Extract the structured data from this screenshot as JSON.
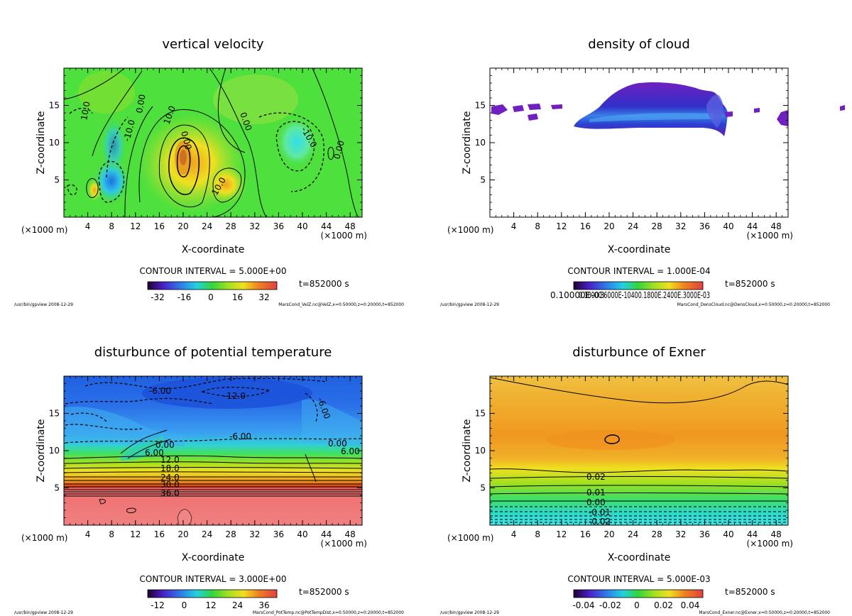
{
  "chart_data": [
    {
      "type": "heatmap",
      "title": "vertical velocity",
      "xlabel": "X-coordinate",
      "ylabel": "Z-coordinate",
      "x_unit_left": "(×1000 m)",
      "x_unit_right": "(×1000 m)",
      "xlim": [
        0,
        50
      ],
      "ylim": [
        0,
        20
      ],
      "xticks": [
        4,
        8,
        12,
        16,
        20,
        24,
        28,
        32,
        36,
        40,
        44,
        48
      ],
      "yticks": [
        5,
        10,
        15
      ],
      "contour_interval": "CONTOUR INTERVAL = 5.000E+00",
      "time_label": "t=852000 s",
      "colorbar_ticks": [
        "-32",
        "-16",
        "0",
        "16",
        "32"
      ],
      "contour_labels": [
        "0.00",
        "10.0",
        "10.0",
        "0.00",
        "-10.0",
        "0.00",
        "10.0",
        "-10.0",
        "0.00"
      ],
      "footer_left": "/usr/bin/gpview  2008-12-29",
      "footer_right": "MarsCond_VelZ.nc@VelZ,x=0:50000,z=0:20000,t=852000"
    },
    {
      "type": "heatmap",
      "title": "density of cloud",
      "xlabel": "X-coordinate",
      "ylabel": "Z-coordinate",
      "x_unit_left": "(×1000 m)",
      "x_unit_right": "(×1000 m)",
      "xlim": [
        0,
        50
      ],
      "ylim": [
        0,
        20
      ],
      "xticks": [
        4,
        8,
        12,
        16,
        20,
        24,
        28,
        32,
        36,
        40,
        44,
        48
      ],
      "yticks": [
        5,
        10,
        15
      ],
      "contour_interval": "CONTOUR INTERVAL = 1.000E-04",
      "time_label": "t=852000 s",
      "colorbar_ticks": [
        "0.10000E-03"
      ],
      "colorbar_overlap_text": "0.10000.6000E-10400.1800E.2400E.3000E-03",
      "footer_left": "/usr/bin/gpview  2008-12-29",
      "footer_right": "MarsCond_DensCloud.nc@DensCloud,x=0:50000,z=0:20000,t=852000"
    },
    {
      "type": "heatmap",
      "title": "disturbunce of potential temperature",
      "xlabel": "X-coordinate",
      "ylabel": "Z-coordinate",
      "x_unit_left": "(×1000 m)",
      "x_unit_right": "(×1000 m)",
      "xlim": [
        0,
        50
      ],
      "ylim": [
        0,
        20
      ],
      "xticks": [
        4,
        8,
        12,
        16,
        20,
        24,
        28,
        32,
        36,
        40,
        44,
        48
      ],
      "yticks": [
        5,
        10,
        15
      ],
      "contour_interval": "CONTOUR INTERVAL = 3.000E+00",
      "time_label": "t=852000 s",
      "colorbar_ticks": [
        "-12",
        "0",
        "12",
        "24",
        "36"
      ],
      "contour_labels": [
        "-6.00",
        "-12.0",
        "-6.00",
        "-6.00",
        "0.00",
        "6.00",
        "12.0",
        "18.0",
        "24.0",
        "30.0",
        "36.0",
        "0.00",
        "6.00"
      ],
      "footer_left": "/usr/bin/gpview  2008-12-29",
      "footer_right": "MarsCond_PotTemp.nc@PotTempDist,x=0:50000,z=0:20000,t=852000"
    },
    {
      "type": "heatmap",
      "title": "disturbunce of Exner",
      "xlabel": "X-coordinate",
      "ylabel": "Z-coordinate",
      "x_unit_left": "(×1000 m)",
      "x_unit_right": "(×1000 m)",
      "xlim": [
        0,
        50
      ],
      "ylim": [
        0,
        20
      ],
      "xticks": [
        4,
        8,
        12,
        16,
        20,
        24,
        28,
        32,
        36,
        40,
        44,
        48
      ],
      "yticks": [
        5,
        10,
        15
      ],
      "contour_interval": "CONTOUR INTERVAL = 5.000E-03",
      "time_label": "t=852000 s",
      "colorbar_ticks": [
        "-0.04",
        "-0.02",
        "0",
        "0.02",
        "0.04"
      ],
      "contour_labels": [
        "0.02",
        "0.01",
        "0.00",
        "-0.01",
        "-0.02"
      ],
      "footer_left": "/usr/bin/gpview  2008-12-29",
      "footer_right": "MarsCond_Exner.nc@Exner,x=0:50000,z=0:20000,t=852000"
    }
  ]
}
